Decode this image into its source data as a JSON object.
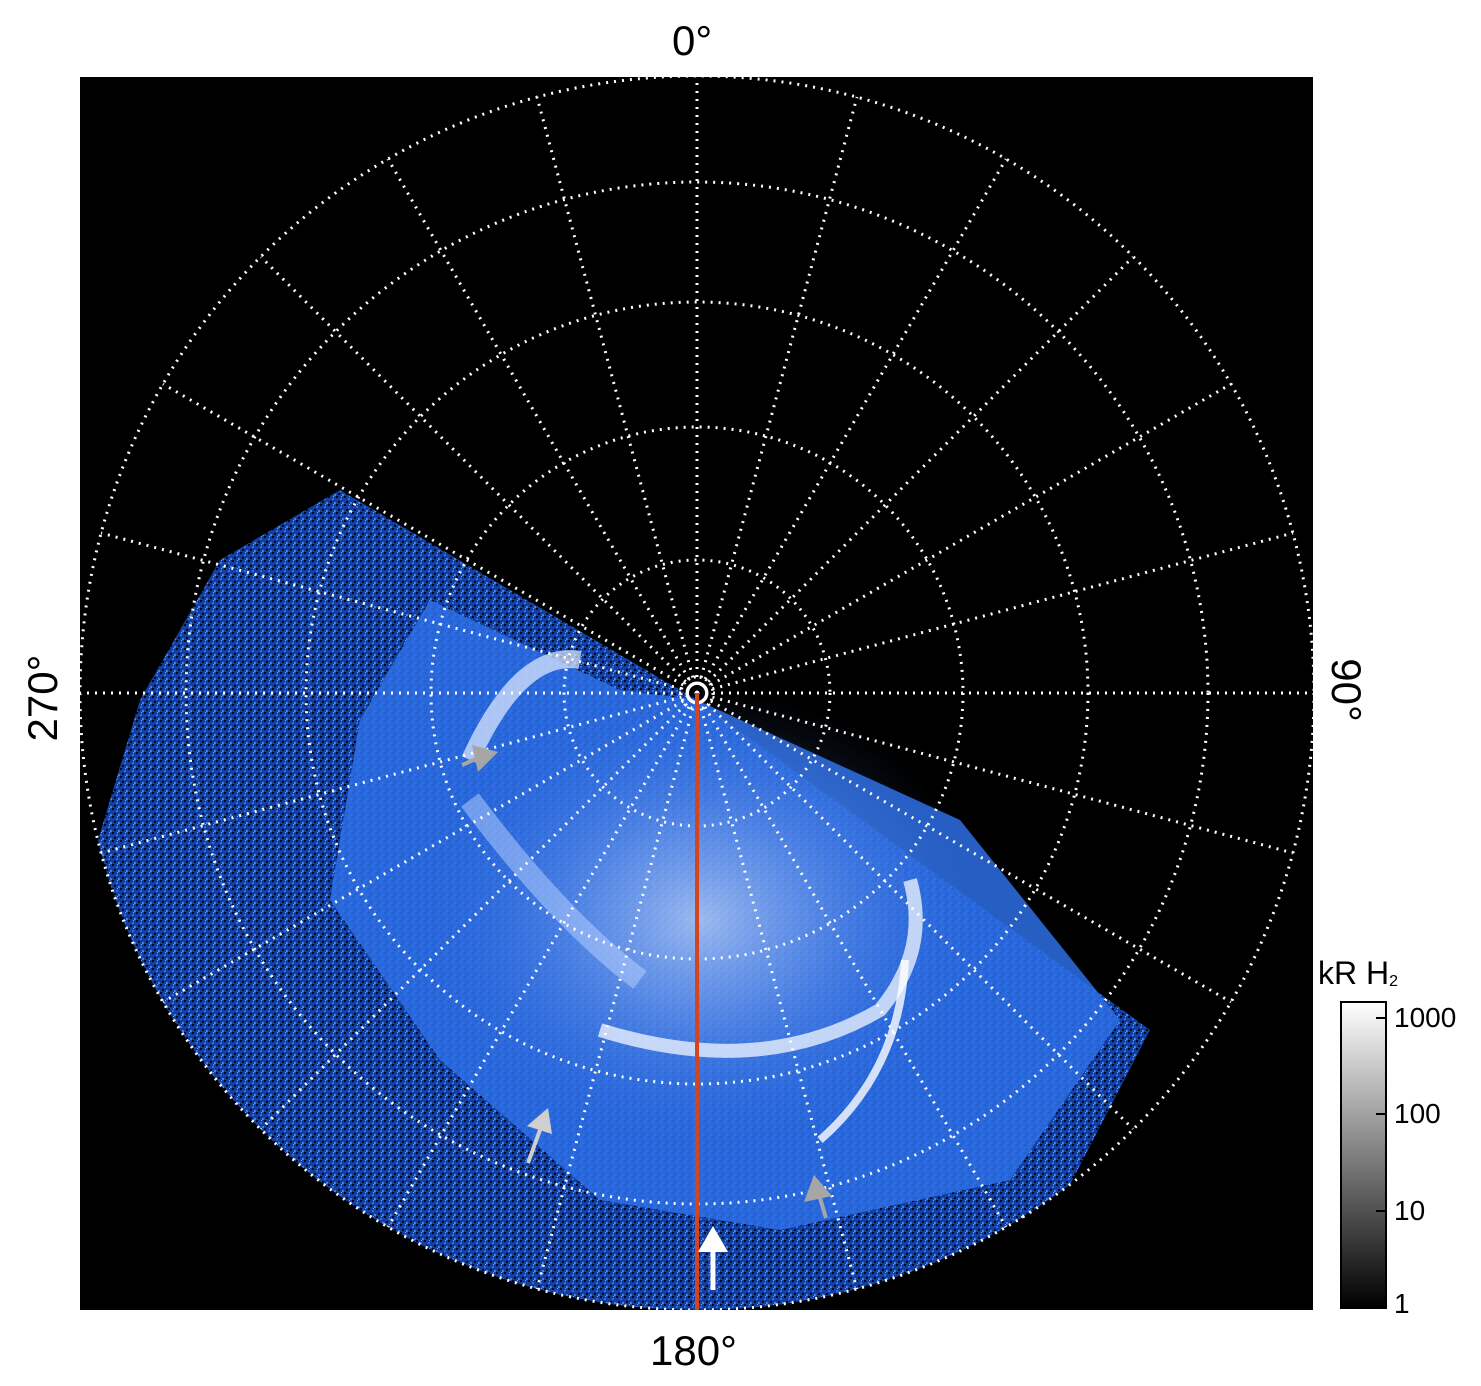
{
  "panel": {
    "label_top": "0°",
    "label_bottom": "180°",
    "label_left": "270°",
    "label_right": "90°"
  },
  "colorbar": {
    "title": "kR H",
    "title_subscript": "2",
    "ticks": [
      "1000",
      "100",
      "10",
      "1"
    ]
  },
  "colors": {
    "background": "#000000",
    "aurora_blue": "#1e5fd6",
    "grid": "#ffffff",
    "meridian_line": "#d2451e",
    "arrow_gray": "#a6a6a6",
    "arrow_white": "#ffffff"
  }
}
